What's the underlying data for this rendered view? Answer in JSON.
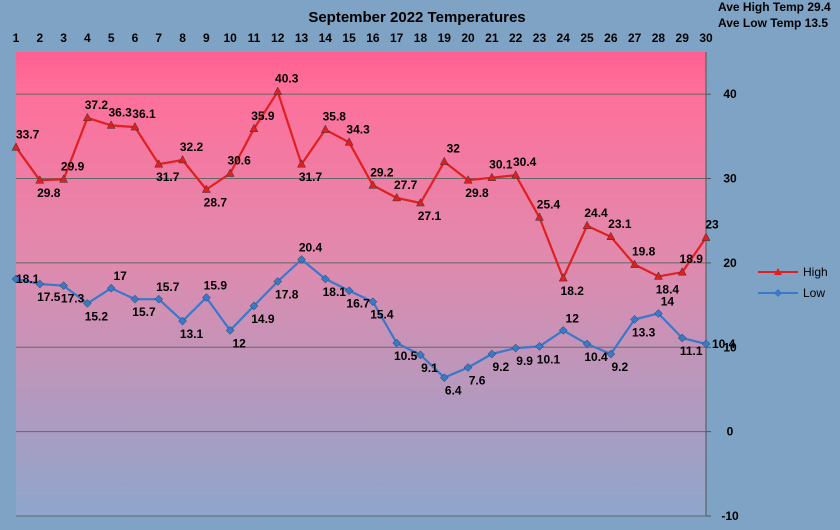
{
  "chart_data": {
    "type": "line",
    "title": "September 2022 Temperatures",
    "stats": [
      "Ave High Temp 29.4",
      "Ave Low Temp 13.5"
    ],
    "x": [
      1,
      2,
      3,
      4,
      5,
      6,
      7,
      8,
      9,
      10,
      11,
      12,
      13,
      14,
      15,
      16,
      17,
      18,
      19,
      20,
      21,
      22,
      23,
      24,
      25,
      26,
      27,
      28,
      29,
      30
    ],
    "x_ticks_position": "top",
    "ylim": [
      -10,
      45
    ],
    "y_ticks": [
      -10,
      0,
      10,
      20,
      30,
      40
    ],
    "y_axis_position": "right",
    "grid": true,
    "legend_position": "right",
    "series": [
      {
        "name": "High",
        "color": "#e02020",
        "marker": "triangle",
        "values": [
          33.7,
          29.8,
          29.9,
          37.2,
          36.3,
          36.1,
          31.7,
          32.2,
          28.7,
          30.6,
          35.9,
          40.3,
          31.7,
          35.8,
          34.3,
          29.2,
          27.7,
          27.1,
          32,
          29.8,
          30.1,
          30.4,
          25.4,
          18.2,
          24.4,
          23.1,
          19.8,
          18.4,
          18.9,
          23
        ]
      },
      {
        "name": "Low",
        "color": "#3a78c9",
        "marker": "diamond",
        "values": [
          18.1,
          17.5,
          17.3,
          15.2,
          17,
          15.7,
          15.7,
          13.1,
          15.9,
          12,
          14.9,
          17.8,
          20.4,
          18.1,
          16.7,
          15.4,
          10.5,
          9.1,
          6.4,
          7.6,
          9.2,
          9.9,
          10.1,
          12,
          10.4,
          9.2,
          13.3,
          14,
          11.1,
          10.4
        ]
      }
    ],
    "colors": {
      "page_background": "#7ea3c4",
      "plot_top": "#ff5f8f",
      "plot_mid": "#e08aae",
      "plot_bottom": "#8ea6cb",
      "grid": "#666666"
    }
  }
}
